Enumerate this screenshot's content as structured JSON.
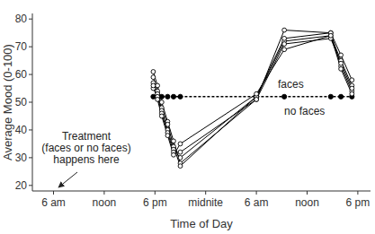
{
  "chart_data": {
    "type": "line",
    "x_label": "Time of Day",
    "y_label": "Average Mood (0-100)",
    "annotation": [
      "Treatment",
      "(faces or no faces)",
      "happens here"
    ],
    "x": [
      17.8,
      18.3,
      18.8,
      19.5,
      20.2,
      21.0,
      30.0,
      33.3,
      38.8,
      40.0,
      41.3
    ],
    "series": [
      {
        "name": "faces",
        "color": "#000000",
        "marker": "open-circle",
        "line_style": "solid",
        "values": [
          61,
          56,
          50,
          43,
          36,
          28,
          51,
          76,
          75,
          63,
          54
        ]
      },
      {
        "color": "#000000",
        "marker": "open-circle",
        "line_style": "solid",
        "values": [
          59,
          54,
          48,
          42,
          34,
          27,
          52,
          72,
          74,
          65,
          56
        ]
      },
      {
        "color": "#000000",
        "marker": "open-circle",
        "line_style": "solid",
        "values": [
          57,
          53,
          47,
          40,
          33,
          30,
          52,
          73,
          75,
          67,
          58
        ]
      },
      {
        "color": "#000000",
        "marker": "open-circle",
        "line_style": "solid",
        "values": [
          55,
          52,
          46,
          39,
          32,
          32,
          51,
          71,
          73,
          64,
          55
        ]
      },
      {
        "color": "#000000",
        "marker": "open-circle",
        "line_style": "solid",
        "values": [
          56,
          51,
          45,
          38,
          31,
          35,
          53,
          69,
          74,
          62,
          53
        ]
      },
      {
        "name": "no faces",
        "color": "#000000",
        "marker": "circle",
        "line_style": "dashed",
        "values": [
          52,
          52,
          52,
          52,
          52,
          52,
          52,
          52,
          52,
          52,
          52
        ]
      }
    ],
    "xlim": [
      3.5,
      43.5
    ],
    "ylim": [
      18,
      82
    ],
    "xticks": [
      {
        "value": 6,
        "label": "6 am"
      },
      {
        "value": 12,
        "label": "noon"
      },
      {
        "value": 18,
        "label": "6 pm"
      },
      {
        "value": 24,
        "label": "midnite"
      },
      {
        "value": 30,
        "label": "6 am"
      },
      {
        "value": 36,
        "label": "noon"
      },
      {
        "value": 42,
        "label": "6 pm"
      }
    ],
    "yticks": [
      20,
      30,
      40,
      50,
      60,
      70,
      80
    ],
    "grid": false
  }
}
